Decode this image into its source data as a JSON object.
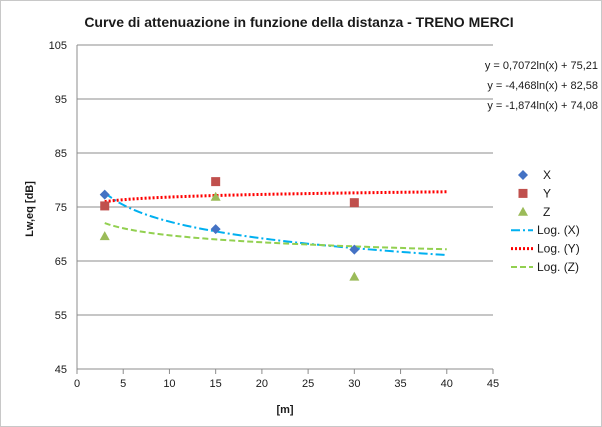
{
  "chart_data": {
    "type": "scatter",
    "title": "Curve di attenuazione in funzione della distanza - TRENO MERCI",
    "xlabel": "[m]",
    "ylabel": "Lw,eq [dB]",
    "xlim": [
      0,
      45
    ],
    "ylim": [
      45,
      105
    ],
    "x_ticks": [
      0,
      5,
      10,
      15,
      20,
      25,
      30,
      35,
      40,
      45
    ],
    "y_ticks": [
      45,
      55,
      65,
      75,
      85,
      95,
      105
    ],
    "grid": "horizontal",
    "legend_position": "right",
    "series": [
      {
        "name": "X",
        "marker": "diamond",
        "color": "#4472c4",
        "x": [
          3,
          15,
          30
        ],
        "y": [
          77.3,
          70.9,
          67.1
        ]
      },
      {
        "name": "Y",
        "marker": "square",
        "color": "#c0504d",
        "x": [
          3,
          15,
          30
        ],
        "y": [
          75.2,
          79.7,
          75.8
        ]
      },
      {
        "name": "Z",
        "marker": "triangle",
        "color": "#9bbb59",
        "x": [
          3,
          15,
          30
        ],
        "y": [
          69.6,
          76.9,
          62.1
        ]
      }
    ],
    "trendlines": [
      {
        "name": "Log. (X)",
        "color": "#00b0f0",
        "dash": "dashdot",
        "a": -4.468,
        "b": 82.58,
        "x_range": [
          3,
          40
        ],
        "equation": "y = -4,468ln(x) + 82,58"
      },
      {
        "name": "Log. (Y)",
        "color": "#ff0000",
        "dash": "dotted",
        "a": 0.7072,
        "b": 75.21,
        "x_range": [
          3,
          40
        ],
        "equation": "y = 0,7072ln(x) + 75,21"
      },
      {
        "name": "Log. (Z)",
        "color": "#92d050",
        "dash": "dashed",
        "a": -1.874,
        "b": 74.08,
        "x_range": [
          3,
          40
        ],
        "equation": "y = -1,874ln(x) + 74,08"
      }
    ],
    "equations_order": [
      "Log. (Y)",
      "Log. (X)",
      "Log. (Z)"
    ]
  }
}
